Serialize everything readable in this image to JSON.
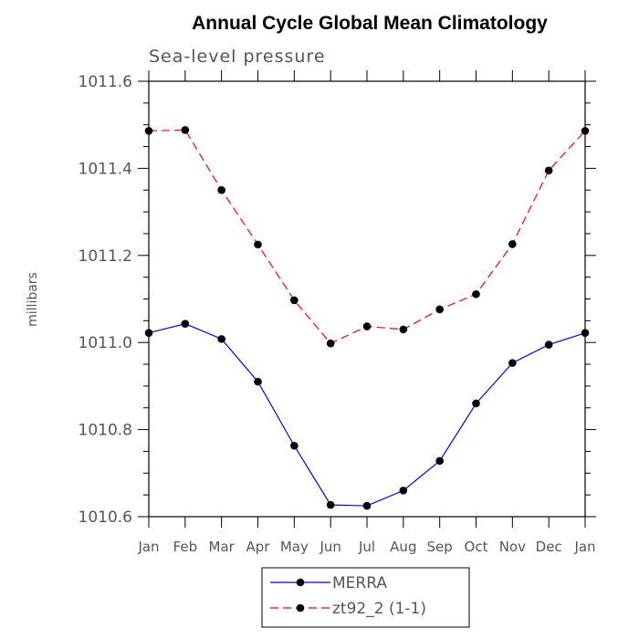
{
  "chart_data": {
    "type": "line",
    "title": "Annual Cycle Global Mean Climatology",
    "subtitle": "Sea-level pressure",
    "xlabel": "",
    "ylabel": "millibars",
    "ylim": [
      1010.6,
      1011.6
    ],
    "yticks": [
      1010.6,
      1010.8,
      1011.0,
      1011.2,
      1011.4,
      1011.6
    ],
    "ytick_labels": [
      "1010.6",
      "1010.8",
      "1011.0",
      "1011.2",
      "1011.4",
      "1011.6"
    ],
    "categories": [
      "Jan",
      "Feb",
      "Mar",
      "Apr",
      "May",
      "Jun",
      "Jul",
      "Aug",
      "Sep",
      "Oct",
      "Nov",
      "Dec",
      "Jan"
    ],
    "grid": false,
    "legend_position": "bottom-center",
    "series": [
      {
        "name": "MERRA",
        "color": "#0000ff",
        "dash": "solid",
        "marker": "circle",
        "values": [
          1011.022,
          1011.043,
          1011.008,
          1010.91,
          1010.763,
          1010.627,
          1010.625,
          1010.66,
          1010.728,
          1010.86,
          1010.953,
          1010.995,
          1011.022
        ]
      },
      {
        "name": "zt92_2 (1-1)",
        "color": "#ff0000",
        "dash": "dashed",
        "marker": "circle",
        "values": [
          1011.486,
          1011.488,
          1011.35,
          1011.225,
          1011.097,
          1010.998,
          1011.037,
          1011.03,
          1011.076,
          1011.111,
          1011.226,
          1011.395,
          1011.486
        ]
      }
    ]
  }
}
